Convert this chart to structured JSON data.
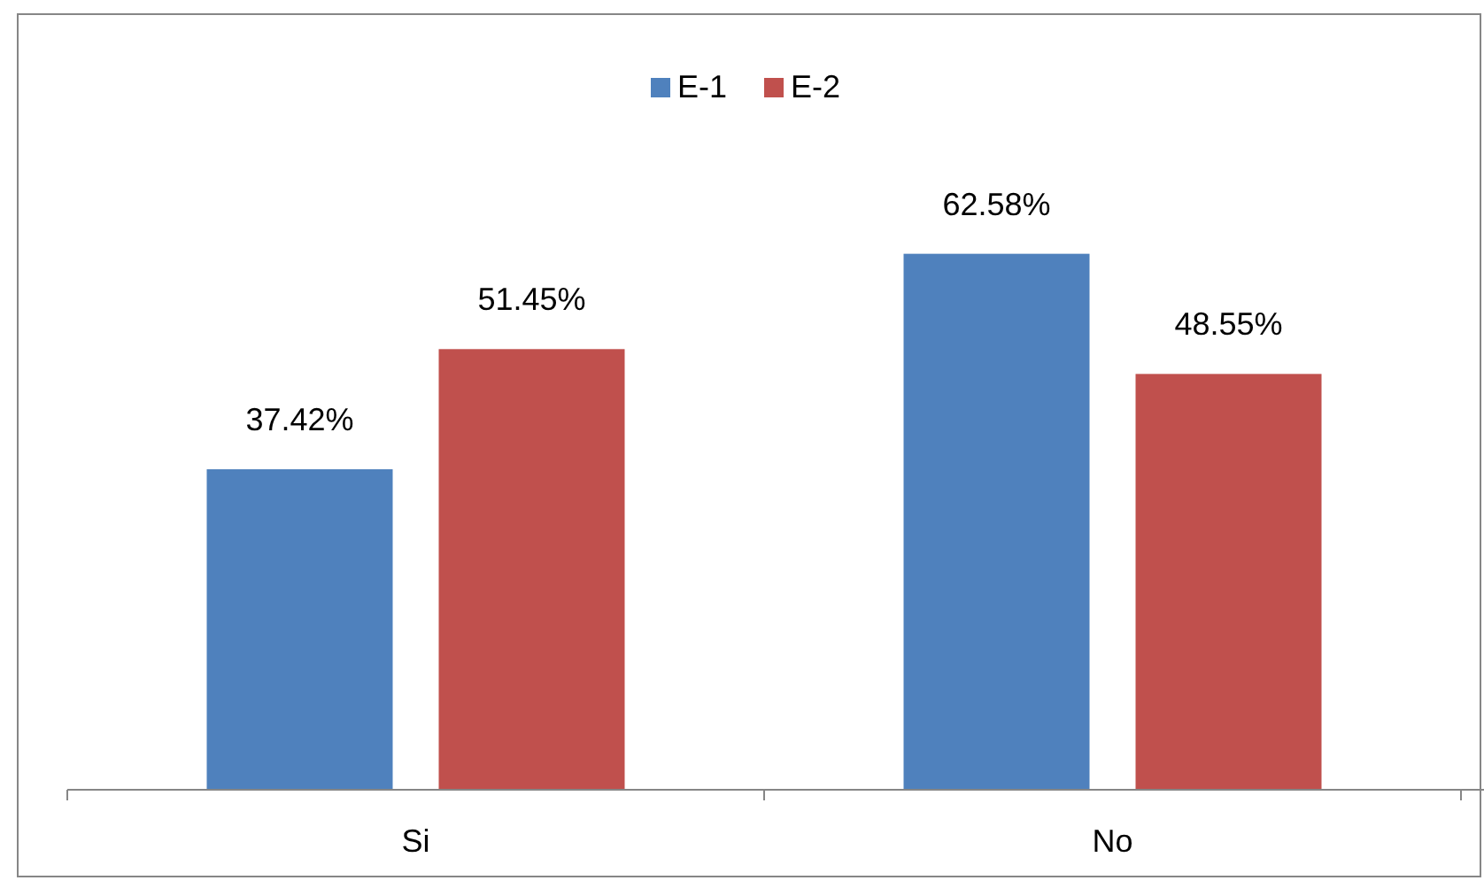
{
  "chart_data": {
    "type": "bar",
    "categories": [
      "Si",
      "No"
    ],
    "series": [
      {
        "name": "E-1",
        "color": "#4f81bd",
        "values": [
          37.42,
          62.58
        ],
        "value_labels": [
          "37.42%",
          "62.58%"
        ]
      },
      {
        "name": "E-2",
        "color": "#c0504d",
        "values": [
          51.45,
          48.55
        ],
        "value_labels": [
          "51.45%",
          "48.55%"
        ]
      }
    ],
    "legend": "top",
    "grid": false
  }
}
